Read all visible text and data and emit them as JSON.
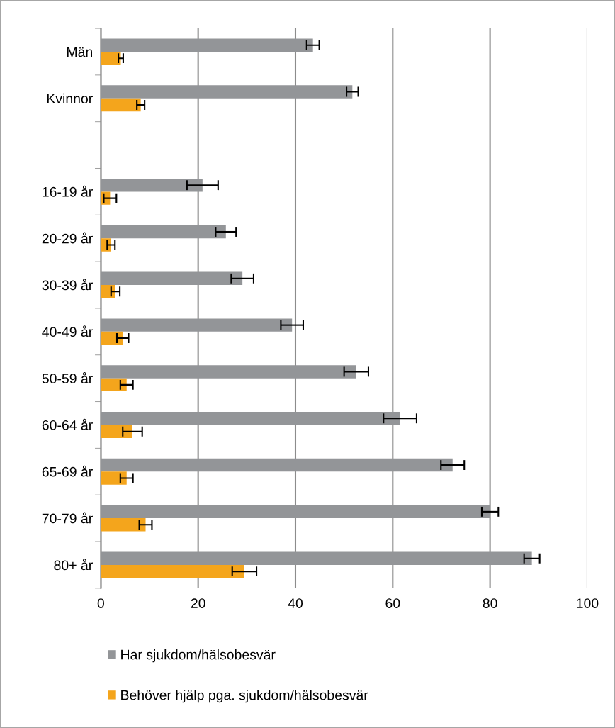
{
  "chart_data": {
    "type": "bar",
    "orientation": "horizontal",
    "categories": [
      "Män",
      "Kvinnor",
      null,
      "16-19 år",
      "20-29 år",
      "30-39 år",
      "40-49 år",
      "50-59 år",
      "60-64 år",
      "65-69 år",
      "70-79 år",
      "80+ år"
    ],
    "series": [
      {
        "name": "Har sjukdom/hälsobesvär",
        "color": "#939598",
        "values": [
          43.6,
          51.7,
          null,
          20.9,
          25.7,
          29.1,
          39.3,
          52.5,
          61.5,
          72.3,
          80.0,
          88.6
        ],
        "errors": [
          1.3,
          1.2,
          null,
          3.2,
          2.1,
          2.3,
          2.3,
          2.5,
          3.4,
          2.4,
          1.7,
          1.6
        ]
      },
      {
        "name": "Behöver hjälp pga. sjukdom/hälsobesvär",
        "color": "#f4a51c",
        "values": [
          4.1,
          8.2,
          null,
          1.9,
          2.1,
          3.0,
          4.5,
          5.3,
          6.5,
          5.3,
          9.2,
          29.5
        ],
        "errors": [
          0.5,
          0.8,
          null,
          1.3,
          0.8,
          0.9,
          1.2,
          1.3,
          2.0,
          1.3,
          1.3,
          2.5
        ]
      }
    ],
    "xlim": [
      0,
      100
    ],
    "xticks": [
      0,
      20,
      40,
      60,
      80,
      100
    ],
    "grid": "x",
    "legend": "bottom"
  }
}
